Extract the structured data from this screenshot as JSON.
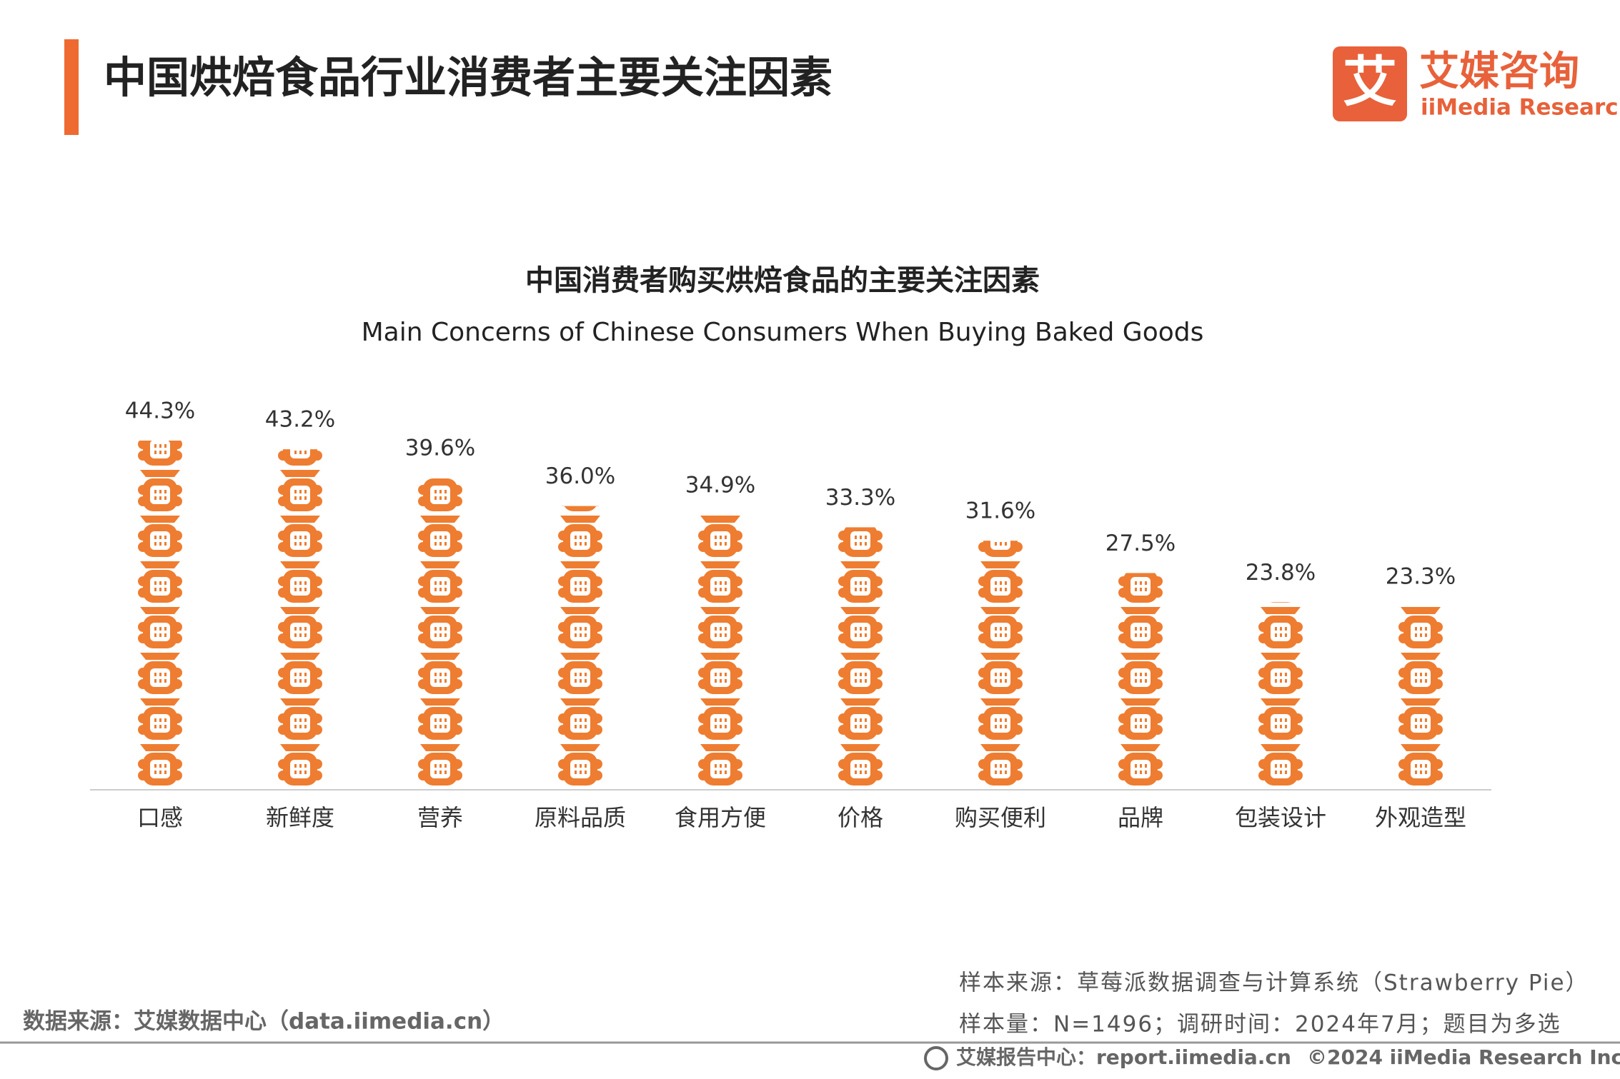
{
  "header": {
    "title": "中国烘焙食品行业消费者主要关注因素"
  },
  "logo": {
    "mark": "艾",
    "name": "艾媒咨询",
    "english": "iiMedia Research"
  },
  "chart_data": {
    "type": "pictogram-bar",
    "title": "中国消费者购买烘焙食品的主要关注因素",
    "subtitle": "Main Concerns of Chinese Consumers When Buying Baked Goods",
    "categories": [
      "口感",
      "新鲜度",
      "营养",
      "原料品质",
      "食用方便",
      "价格",
      "购买便利",
      "品牌",
      "包装设计",
      "外观造型"
    ],
    "values": [
      44.3,
      43.2,
      39.6,
      36.0,
      34.9,
      33.3,
      31.6,
      27.5,
      23.8,
      23.3
    ],
    "value_labels": [
      "44.3%",
      "43.2%",
      "39.6%",
      "36.0%",
      "34.9%",
      "33.3%",
      "31.6%",
      "27.5%",
      "23.8%",
      "23.3%"
    ],
    "color": "#ee7d31"
  },
  "footer": {
    "sample_source": "样本来源：草莓派数据调查与计算系统（Strawberry Pie）",
    "sample_info": "样本量：N=1496；调研时间：2024年7月；题目为多选",
    "data_source": "数据来源：艾媒数据中心（data.iimedia.cn）",
    "report_center": "艾媒报告中心：report.iimedia.cn",
    "copyright": "©2024 iiMedia Research Inc"
  }
}
